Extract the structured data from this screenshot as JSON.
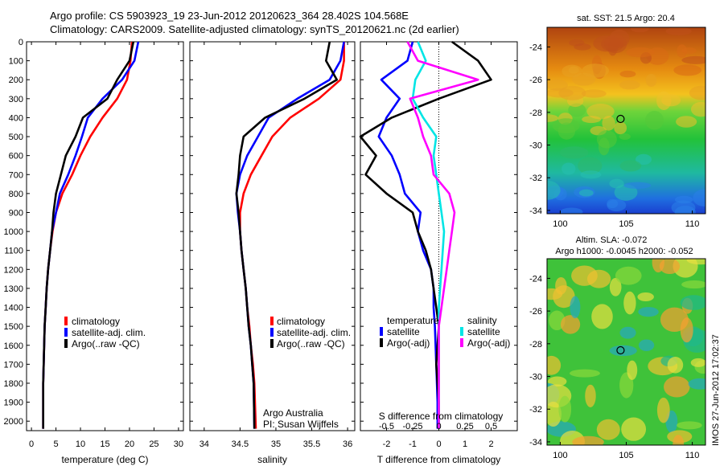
{
  "header": {
    "line1": "Argo profile: CS 5903923_19 23-Jun-2012 20120623_364 28.402S 104.568E",
    "line2": "Climatology: CARS2009. Satellite-adjusted climatology: synTS_20120621.nc (2d earlier)"
  },
  "colors": {
    "climatology": "#ff0000",
    "satellite": "#0000ff",
    "argo": "#000000",
    "sat_salinity": "#00e5e5",
    "argo_salinity": "#ff00ff"
  },
  "chart_data": [
    {
      "type": "line",
      "panel": "temperature",
      "xlabel": "temperature (deg C)",
      "ylim": [
        2050,
        0
      ],
      "xlim": [
        -1,
        31
      ],
      "xticks": [
        0,
        5,
        10,
        15,
        20,
        25,
        30
      ],
      "yticks": [
        0,
        100,
        200,
        300,
        400,
        500,
        600,
        700,
        800,
        900,
        1000,
        1100,
        1200,
        1300,
        1400,
        1500,
        1600,
        1700,
        1800,
        1900,
        2000
      ],
      "legend": [
        "climatology",
        "satellite-adj. clim.",
        "Argo(..raw -QC)"
      ],
      "series": [
        {
          "name": "climatology",
          "color": "#ff0000",
          "x": [
            20.5,
            20.2,
            19.5,
            17.5,
            14.5,
            12.0,
            10.0,
            8.3,
            6.3,
            5.0,
            4.3,
            3.8,
            3.4,
            3.1,
            2.9,
            2.7,
            2.6,
            2.5,
            2.4,
            2.4
          ],
          "y": [
            0,
            100,
            200,
            300,
            400,
            500,
            600,
            700,
            800,
            900,
            1000,
            1100,
            1200,
            1300,
            1400,
            1500,
            1600,
            1700,
            1800,
            2040
          ]
        },
        {
          "name": "satellite-adj. clim.",
          "color": "#0000ff",
          "x": [
            21.8,
            21.0,
            18.5,
            14.5,
            11.5,
            10.3,
            9.0,
            7.5,
            5.8,
            5.0,
            4.2,
            3.8,
            3.4,
            3.1,
            2.9,
            2.7,
            2.6,
            2.5,
            2.4,
            2.4
          ],
          "y": [
            0,
            100,
            200,
            300,
            400,
            500,
            600,
            700,
            800,
            900,
            1000,
            1100,
            1200,
            1300,
            1400,
            1500,
            1600,
            1700,
            1800,
            2040
          ]
        },
        {
          "name": "Argo(..raw -QC)",
          "color": "#000000",
          "x": [
            20.8,
            20.0,
            17.5,
            15.5,
            10.5,
            9.0,
            7.0,
            6.0,
            5.0,
            4.5,
            4.2,
            3.8,
            3.4,
            3.1,
            2.9,
            2.7,
            2.6,
            2.5,
            2.4,
            2.4
          ],
          "y": [
            0,
            100,
            200,
            300,
            400,
            500,
            600,
            700,
            800,
            900,
            1000,
            1100,
            1200,
            1300,
            1400,
            1500,
            1600,
            1700,
            1800,
            2040
          ]
        }
      ]
    },
    {
      "type": "line",
      "panel": "salinity",
      "xlabel": "salinity",
      "ylim": [
        2050,
        0
      ],
      "xlim": [
        33.8,
        36.1
      ],
      "xticks": [
        34,
        34.5,
        35,
        35.5,
        36
      ],
      "xticklabels": [
        "34",
        "34.5",
        "35",
        "35.5",
        "36"
      ],
      "legend": [
        "climatology",
        "satellite-adj. clim.",
        "Argo(..raw -QC)"
      ],
      "annotations": [
        "Argo Australia",
        "PI: Susan Wijffels"
      ],
      "series": [
        {
          "name": "climatology",
          "color": "#ff0000",
          "x": [
            35.95,
            35.95,
            35.9,
            35.6,
            35.2,
            34.95,
            34.8,
            34.65,
            34.55,
            34.5,
            34.5,
            34.52,
            34.55,
            34.58,
            34.6,
            34.63,
            34.65,
            34.68,
            34.7,
            34.72
          ],
          "y": [
            0,
            100,
            200,
            300,
            400,
            500,
            600,
            700,
            800,
            900,
            1000,
            1100,
            1200,
            1300,
            1400,
            1500,
            1600,
            1700,
            1800,
            2040
          ]
        },
        {
          "name": "satellite-adj. clim.",
          "color": "#0000ff",
          "x": [
            35.95,
            35.9,
            35.75,
            35.3,
            34.9,
            34.75,
            34.6,
            34.5,
            34.45,
            34.47,
            34.5,
            34.52,
            34.55,
            34.58,
            34.6,
            34.62,
            34.65,
            34.67,
            34.69,
            34.7
          ],
          "y": [
            0,
            100,
            200,
            300,
            400,
            500,
            600,
            700,
            800,
            900,
            1000,
            1100,
            1200,
            1300,
            1400,
            1500,
            1600,
            1700,
            1800,
            2040
          ]
        },
        {
          "name": "Argo(..raw -QC)",
          "color": "#000000",
          "x": [
            35.75,
            35.7,
            35.85,
            35.4,
            34.85,
            34.55,
            34.5,
            34.48,
            34.45,
            34.48,
            34.5,
            34.52,
            34.55,
            34.58,
            34.6,
            34.62,
            34.65,
            34.67,
            34.69,
            34.7
          ],
          "y": [
            0,
            100,
            200,
            300,
            400,
            500,
            600,
            700,
            800,
            900,
            1000,
            1100,
            1200,
            1300,
            1400,
            1500,
            1600,
            1700,
            1800,
            2040
          ]
        }
      ]
    },
    {
      "type": "line",
      "panel": "difference",
      "xlabel": "T difference from climatology",
      "top_axis_label": "S difference from climatology",
      "ylim": [
        2050,
        0
      ],
      "xlim": [
        -3,
        3
      ],
      "xticks": [
        -2,
        -1,
        0,
        1,
        2
      ],
      "top_xticklabels": [
        "-0.5",
        "-0.25",
        "0",
        "0.25",
        "0.5"
      ],
      "legend_titles": [
        "temperature",
        "salinity"
      ],
      "legend": [
        "satellite",
        "Argo(-adj)",
        "satellite",
        "Argo(-adj)"
      ],
      "series": [
        {
          "name": "temperature satellite",
          "color": "#0000ff",
          "x": [
            -1.0,
            -1.2,
            -2.2,
            -1.5,
            -2.0,
            -2.3,
            -1.8,
            -1.5,
            -1.3,
            -0.7,
            -0.8,
            -0.6,
            -0.3,
            -0.2,
            -0.2,
            -0.15,
            -0.1,
            -0.05,
            -0.05
          ],
          "y": [
            0,
            100,
            200,
            300,
            400,
            500,
            600,
            700,
            800,
            900,
            1000,
            1100,
            1200,
            1300,
            1400,
            1500,
            1700,
            1900,
            2040
          ]
        },
        {
          "name": "temperature Argo(-adj)",
          "color": "#000000",
          "x": [
            0.5,
            1.5,
            2.0,
            0.0,
            -1.8,
            -3.0,
            -2.4,
            -2.8,
            -2.0,
            -1.0,
            -0.8,
            -0.5,
            -0.3,
            -0.2,
            -0.1,
            0.0,
            -0.1,
            0.0,
            0.0
          ],
          "y": [
            0,
            100,
            200,
            300,
            400,
            500,
            600,
            700,
            800,
            900,
            1000,
            1100,
            1200,
            1300,
            1400,
            1500,
            1700,
            1900,
            2040
          ]
        },
        {
          "name": "salinity satellite",
          "color": "#00e5e5",
          "x": [
            -0.8,
            -0.5,
            -0.9,
            -1.0,
            -0.6,
            -0.1,
            -0.2,
            -0.1,
            0.0,
            0.1,
            0.2,
            0.15,
            0.1,
            0.05,
            0.0,
            0.0,
            0.0,
            0.0,
            0.0
          ],
          "y": [
            0,
            100,
            200,
            300,
            400,
            500,
            600,
            700,
            800,
            900,
            1000,
            1100,
            1200,
            1300,
            1400,
            1500,
            1700,
            1900,
            2040
          ]
        },
        {
          "name": "salinity Argo(-adj)",
          "color": "#ff00ff",
          "x": [
            -1.2,
            -0.8,
            1.5,
            -1.1,
            -0.8,
            -0.6,
            -0.3,
            -0.2,
            0.4,
            0.6,
            0.5,
            0.4,
            0.3,
            0.2,
            0.1,
            0.0,
            0.0,
            0.0,
            0.0
          ],
          "y": [
            0,
            100,
            200,
            300,
            400,
            500,
            600,
            700,
            800,
            900,
            1000,
            1100,
            1200,
            1300,
            1400,
            1500,
            1700,
            1900,
            2040
          ]
        }
      ]
    },
    {
      "type": "heatmap",
      "panel": "sst_map",
      "title": "sat. SST: 21.5  Argo: 20.4",
      "xlim": [
        99,
        111
      ],
      "ylim": [
        -34.2,
        -22.8
      ],
      "xticks": [
        100,
        105,
        110
      ],
      "yticks": [
        -24,
        -26,
        -28,
        -30,
        -32,
        -34
      ],
      "marker": {
        "lon": 104.568,
        "lat": -28.402
      }
    },
    {
      "type": "heatmap",
      "panel": "sla_map",
      "title_lines": [
        "Altim. SLA: -0.072",
        "Argo h1000: -0.0045 h2000: -0.052"
      ],
      "xlim": [
        99,
        111
      ],
      "ylim": [
        -34.2,
        -22.8
      ],
      "xticks": [
        100,
        105,
        110
      ],
      "yticks": [
        -24,
        -26,
        -28,
        -30,
        -32,
        -34
      ],
      "marker": {
        "lon": 104.568,
        "lat": -28.402
      }
    }
  ],
  "side_label": "IMOS 27-Jun-2012 17:02:37"
}
